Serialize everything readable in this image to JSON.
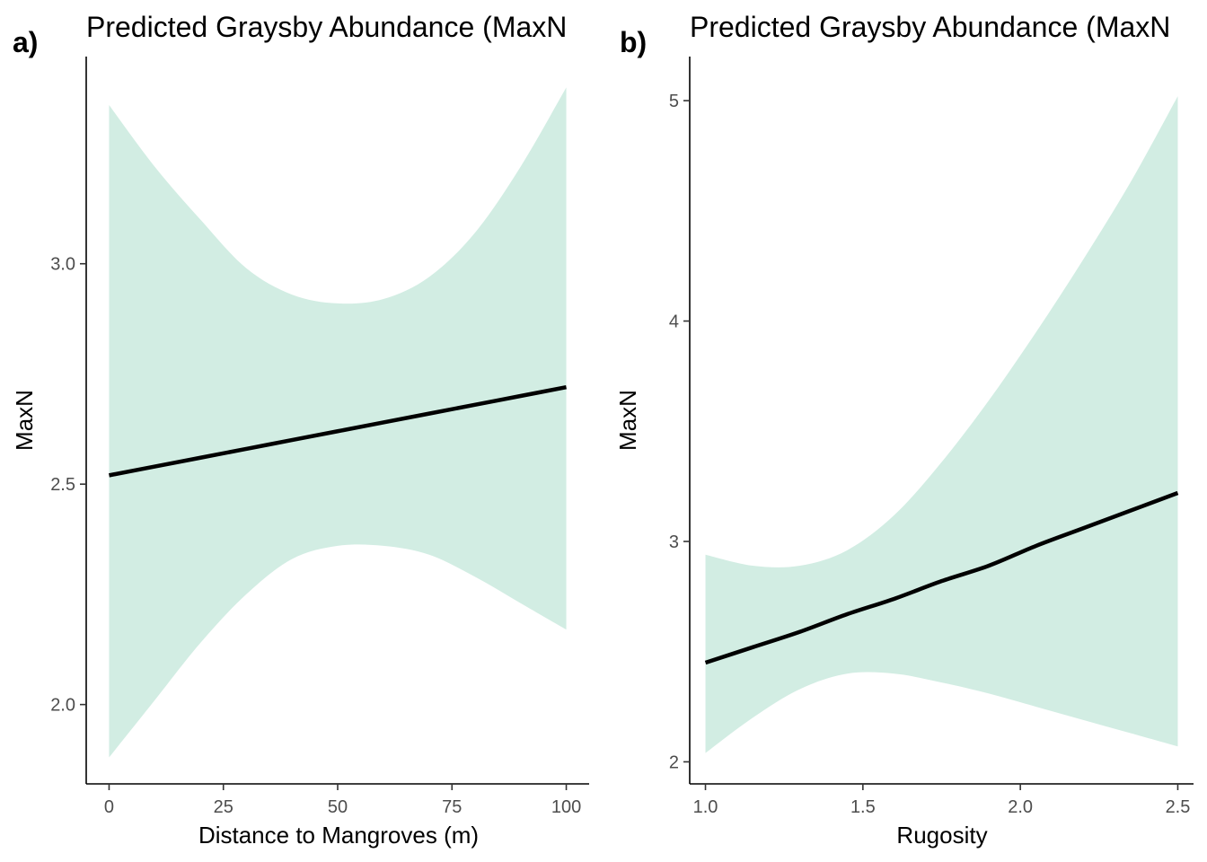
{
  "chart_data": [
    {
      "type": "line",
      "panel_label": "a)",
      "title": "Predicted Graysby Abundance (MaxN",
      "xlabel": "Distance to Mangroves (m)",
      "ylabel": "MaxN",
      "xlim": [
        -5,
        105
      ],
      "ylim": [
        1.82,
        3.47
      ],
      "x_ticks": [
        0,
        25,
        50,
        75,
        100
      ],
      "x_tick_labels": [
        "0",
        "25",
        "50",
        "75",
        "100"
      ],
      "y_ticks": [
        2.0,
        2.5,
        3.0
      ],
      "y_tick_labels": [
        "2.0",
        "2.5",
        "3.0"
      ],
      "grid": false,
      "series": [
        {
          "role": "fit",
          "x": [
            0,
            10,
            20,
            30,
            40,
            50,
            60,
            70,
            80,
            90,
            100
          ],
          "y": [
            2.52,
            2.54,
            2.56,
            2.58,
            2.6,
            2.62,
            2.64,
            2.66,
            2.68,
            2.7,
            2.72
          ],
          "lower": [
            1.88,
            2.01,
            2.14,
            2.25,
            2.33,
            2.36,
            2.36,
            2.34,
            2.29,
            2.23,
            2.17
          ],
          "upper": [
            3.36,
            3.22,
            3.1,
            2.99,
            2.93,
            2.91,
            2.92,
            2.97,
            3.07,
            3.22,
            3.4
          ]
        }
      ],
      "ribbon_color": "#d2ede3",
      "line_color": "#000000"
    },
    {
      "type": "line",
      "panel_label": "b)",
      "title": "Predicted Graysby Abundance (MaxN",
      "xlabel": "Rugosity",
      "ylabel": "MaxN",
      "xlim": [
        0.95,
        2.55
      ],
      "ylim": [
        1.9,
        5.2
      ],
      "x_ticks": [
        1.0,
        1.5,
        2.0,
        2.5
      ],
      "x_tick_labels": [
        "1.0",
        "1.5",
        "2.0",
        "2.5"
      ],
      "y_ticks": [
        2,
        3,
        4,
        5
      ],
      "y_tick_labels": [
        "2",
        "3",
        "4",
        "5"
      ],
      "grid": false,
      "series": [
        {
          "role": "fit",
          "x": [
            1.0,
            1.15,
            1.3,
            1.45,
            1.6,
            1.75,
            1.9,
            2.05,
            2.2,
            2.35,
            2.5
          ],
          "y": [
            2.45,
            2.52,
            2.59,
            2.67,
            2.74,
            2.82,
            2.89,
            2.98,
            3.06,
            3.14,
            3.22
          ],
          "lower": [
            2.04,
            2.2,
            2.33,
            2.4,
            2.4,
            2.36,
            2.31,
            2.25,
            2.19,
            2.13,
            2.07
          ],
          "upper": [
            2.94,
            2.89,
            2.89,
            2.96,
            3.12,
            3.36,
            3.64,
            3.95,
            4.28,
            4.63,
            5.02
          ]
        }
      ],
      "ribbon_color": "#d2ede3",
      "line_color": "#000000"
    }
  ]
}
